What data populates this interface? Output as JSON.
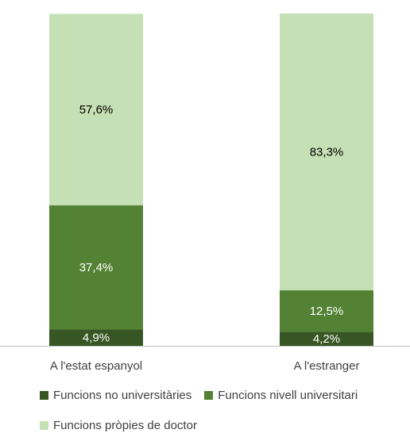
{
  "chart_data": {
    "type": "bar",
    "stacked": true,
    "categories": [
      "A l'estat espanyol",
      "A l'estranger"
    ],
    "series": [
      {
        "name": "Funcions no universitàries",
        "values": [
          4.9,
          4.2
        ],
        "labels": [
          "4,9%",
          "4,2%"
        ],
        "color": "#375623",
        "label_color": "#ffffff"
      },
      {
        "name": "Funcions nivell universitari",
        "values": [
          37.4,
          12.5
        ],
        "labels": [
          "37,4%",
          "12,5%"
        ],
        "color": "#548235",
        "label_color": "#ffffff"
      },
      {
        "name": "Funcions pròpies de doctor",
        "values": [
          57.6,
          83.3
        ],
        "labels": [
          "57,6%",
          "83,3%"
        ],
        "color": "#c5e0b4",
        "label_color": "#000000"
      }
    ],
    "ylim": [
      0,
      100
    ],
    "grid": false,
    "legend_position": "bottom",
    "title": "",
    "xlabel": "",
    "ylabel": ""
  }
}
